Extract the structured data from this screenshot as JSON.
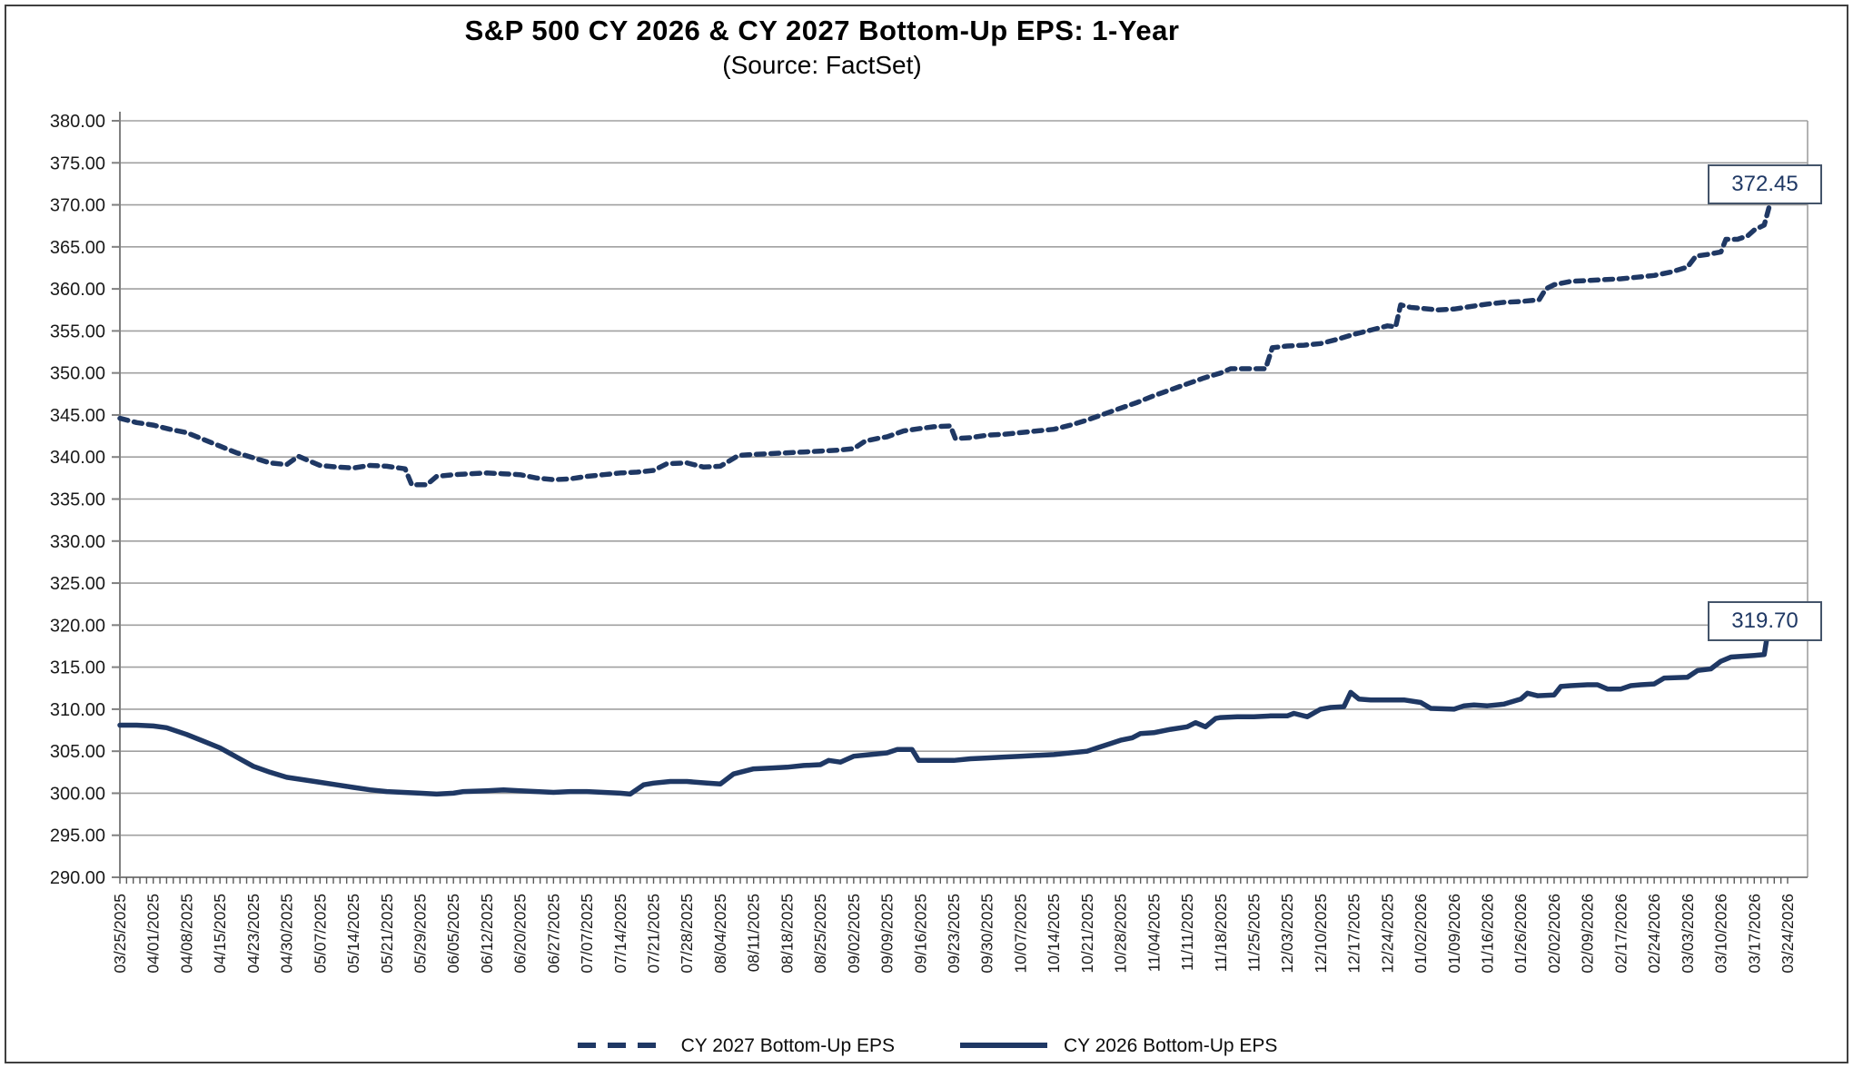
{
  "header": {
    "title": "S&P 500 CY 2026 & CY 2027 Bottom-Up EPS: 1-Year",
    "subtitle": "(Source: FactSet)"
  },
  "legend": {
    "items": [
      {
        "label": "CY 2027 Bottom-Up EPS",
        "style": "dashed"
      },
      {
        "label": "CY 2026 Bottom-Up EPS",
        "style": "solid"
      }
    ]
  },
  "colors": {
    "series": "#1F3864",
    "gridline": "#A0A0A0",
    "axis": "#808080",
    "tick": "#595959",
    "label_text": "#1a1a1a",
    "endbox_border": "#44546A",
    "endbox_text": "#1F3864"
  },
  "chart_data": {
    "type": "line",
    "title": "S&P 500 CY 2026 & CY 2027 Bottom-Up EPS: 1-Year",
    "subtitle": "(Source: FactSet)",
    "grid": "horizontal-only",
    "legend_position": "bottom-center",
    "y_min": 290,
    "y_max": 380,
    "y_step": 5,
    "y_tick_labels": [
      "380.00",
      "375.00",
      "370.00",
      "365.00",
      "360.00",
      "355.00",
      "350.00",
      "345.00",
      "340.00",
      "335.00",
      "330.00",
      "325.00",
      "320.00",
      "315.00",
      "310.00",
      "305.00",
      "300.00",
      "295.00",
      "290.00"
    ],
    "daily_tick_count": 251,
    "x_labels": [
      "03/25/2025",
      "04/01/2025",
      "04/08/2025",
      "04/15/2025",
      "04/23/2025",
      "04/30/2025",
      "05/07/2025",
      "05/14/2025",
      "05/21/2025",
      "05/29/2025",
      "06/05/2025",
      "06/12/2025",
      "06/20/2025",
      "06/27/2025",
      "07/07/2025",
      "07/14/2025",
      "07/21/2025",
      "07/28/2025",
      "08/04/2025",
      "08/11/2025",
      "08/18/2025",
      "08/25/2025",
      "09/02/2025",
      "09/09/2025",
      "09/16/2025",
      "09/23/2025",
      "09/30/2025",
      "10/07/2025",
      "10/14/2025",
      "10/21/2025",
      "10/28/2025",
      "11/04/2025",
      "11/11/2025",
      "11/18/2025",
      "11/25/2025",
      "12/03/2025",
      "12/10/2025",
      "12/17/2025",
      "12/24/2025",
      "01/02/2026",
      "01/09/2026",
      "01/16/2026",
      "01/26/2026",
      "02/02/2026",
      "02/09/2026",
      "02/17/2026",
      "02/24/2026",
      "03/03/2026",
      "03/10/2026",
      "03/17/2026",
      "03/24/2026"
    ],
    "series": [
      {
        "name": "CY 2027 Bottom-Up EPS",
        "style": "dashed",
        "end_label": "372.45",
        "end_value": 372.45,
        "points": [
          [
            0,
            344.6
          ],
          [
            0.5,
            344.1
          ],
          [
            1,
            343.8
          ],
          [
            1.5,
            343.3
          ],
          [
            2,
            342.9
          ],
          [
            2.5,
            342.1
          ],
          [
            3,
            341.3
          ],
          [
            3.5,
            340.5
          ],
          [
            4,
            339.9
          ],
          [
            4.5,
            339.3
          ],
          [
            5,
            339.1
          ],
          [
            5.35,
            340.1
          ],
          [
            5.7,
            339.5
          ],
          [
            6,
            339.0
          ],
          [
            6.5,
            338.8
          ],
          [
            7,
            338.7
          ],
          [
            7.5,
            339.0
          ],
          [
            8,
            338.9
          ],
          [
            8.55,
            338.6
          ],
          [
            8.75,
            336.7
          ],
          [
            9.2,
            336.7
          ],
          [
            9.5,
            337.7
          ],
          [
            10,
            337.9
          ],
          [
            10.5,
            338.0
          ],
          [
            11,
            338.1
          ],
          [
            11.5,
            338.0
          ],
          [
            12,
            337.9
          ],
          [
            12.5,
            337.5
          ],
          [
            13,
            337.3
          ],
          [
            13.5,
            337.4
          ],
          [
            14,
            337.7
          ],
          [
            14.5,
            337.9
          ],
          [
            15,
            338.1
          ],
          [
            15.5,
            338.2
          ],
          [
            16,
            338.4
          ],
          [
            16.4,
            339.2
          ],
          [
            17,
            339.3
          ],
          [
            17.5,
            338.8
          ],
          [
            18,
            338.9
          ],
          [
            18.55,
            340.2
          ],
          [
            19,
            340.3
          ],
          [
            19.5,
            340.4
          ],
          [
            20,
            340.5
          ],
          [
            20.5,
            340.6
          ],
          [
            21,
            340.7
          ],
          [
            21.5,
            340.8
          ],
          [
            22,
            341.0
          ],
          [
            22.35,
            341.9
          ],
          [
            22.7,
            342.2
          ],
          [
            23,
            342.4
          ],
          [
            23.5,
            343.1
          ],
          [
            24,
            343.4
          ],
          [
            24.4,
            343.6
          ],
          [
            24.9,
            343.7
          ],
          [
            25.05,
            342.2
          ],
          [
            25.5,
            342.3
          ],
          [
            26,
            342.6
          ],
          [
            26.5,
            342.7
          ],
          [
            27,
            342.9
          ],
          [
            27.5,
            343.1
          ],
          [
            28,
            343.3
          ],
          [
            28.5,
            343.8
          ],
          [
            29,
            344.4
          ],
          [
            29.5,
            345.1
          ],
          [
            30,
            345.8
          ],
          [
            30.5,
            346.5
          ],
          [
            31,
            347.3
          ],
          [
            31.5,
            348.0
          ],
          [
            32,
            348.7
          ],
          [
            32.5,
            349.4
          ],
          [
            33,
            350.0
          ],
          [
            33.3,
            350.5
          ],
          [
            34.35,
            350.5
          ],
          [
            34.55,
            353.0
          ],
          [
            35,
            353.2
          ],
          [
            35.5,
            353.3
          ],
          [
            36,
            353.5
          ],
          [
            36.5,
            354.0
          ],
          [
            37,
            354.6
          ],
          [
            37.5,
            355.1
          ],
          [
            38,
            355.6
          ],
          [
            38.25,
            355.5
          ],
          [
            38.4,
            358.1
          ],
          [
            38.7,
            357.8
          ],
          [
            39,
            357.7
          ],
          [
            39.5,
            357.5
          ],
          [
            40,
            357.6
          ],
          [
            40.5,
            357.9
          ],
          [
            41,
            358.2
          ],
          [
            41.5,
            358.4
          ],
          [
            42,
            358.5
          ],
          [
            42.55,
            358.7
          ],
          [
            42.75,
            360.0
          ],
          [
            43,
            360.5
          ],
          [
            43.5,
            360.9
          ],
          [
            44,
            361.0
          ],
          [
            44.5,
            361.1
          ],
          [
            45,
            361.2
          ],
          [
            45.5,
            361.4
          ],
          [
            46,
            361.6
          ],
          [
            46.5,
            362.0
          ],
          [
            47,
            362.6
          ],
          [
            47.25,
            363.9
          ],
          [
            47.6,
            364.1
          ],
          [
            48,
            364.4
          ],
          [
            48.15,
            365.9
          ],
          [
            48.5,
            365.9
          ],
          [
            48.8,
            366.3
          ],
          [
            49,
            367.0
          ],
          [
            49.3,
            367.6
          ],
          [
            49.45,
            369.8
          ],
          [
            49.6,
            372.6
          ],
          [
            49.75,
            372.0
          ],
          [
            50,
            372.45
          ]
        ]
      },
      {
        "name": "CY 2026 Bottom-Up EPS",
        "style": "solid",
        "end_label": "319.70",
        "end_value": 319.7,
        "points": [
          [
            0,
            308.1
          ],
          [
            0.5,
            308.1
          ],
          [
            1,
            308.0
          ],
          [
            1.4,
            307.8
          ],
          [
            2,
            307.0
          ],
          [
            2.5,
            306.2
          ],
          [
            3,
            305.4
          ],
          [
            3.5,
            304.3
          ],
          [
            4,
            303.2
          ],
          [
            4.5,
            302.5
          ],
          [
            5,
            301.9
          ],
          [
            5.5,
            301.6
          ],
          [
            6,
            301.3
          ],
          [
            6.5,
            301.0
          ],
          [
            7,
            300.7
          ],
          [
            7.5,
            300.4
          ],
          [
            8,
            300.2
          ],
          [
            8.5,
            300.1
          ],
          [
            9,
            300.0
          ],
          [
            9.5,
            299.9
          ],
          [
            10,
            300.0
          ],
          [
            10.3,
            300.2
          ],
          [
            11,
            300.3
          ],
          [
            11.5,
            300.4
          ],
          [
            12,
            300.3
          ],
          [
            12.5,
            300.2
          ],
          [
            13,
            300.1
          ],
          [
            13.5,
            300.2
          ],
          [
            14,
            300.2
          ],
          [
            14.5,
            300.1
          ],
          [
            15,
            300.0
          ],
          [
            15.3,
            299.9
          ],
          [
            15.7,
            301.0
          ],
          [
            16,
            301.2
          ],
          [
            16.5,
            301.4
          ],
          [
            17,
            301.4
          ],
          [
            17.6,
            301.2
          ],
          [
            18,
            301.1
          ],
          [
            18.4,
            302.3
          ],
          [
            19,
            302.9
          ],
          [
            19.5,
            303.0
          ],
          [
            20,
            303.1
          ],
          [
            20.5,
            303.3
          ],
          [
            21,
            303.4
          ],
          [
            21.25,
            303.9
          ],
          [
            21.6,
            303.7
          ],
          [
            22,
            304.4
          ],
          [
            22.5,
            304.6
          ],
          [
            23,
            304.8
          ],
          [
            23.3,
            305.2
          ],
          [
            23.75,
            305.2
          ],
          [
            23.95,
            303.9
          ],
          [
            24.5,
            303.9
          ],
          [
            25,
            303.9
          ],
          [
            25.5,
            304.1
          ],
          [
            26,
            304.2
          ],
          [
            26.5,
            304.3
          ],
          [
            27,
            304.4
          ],
          [
            27.5,
            304.5
          ],
          [
            28,
            304.6
          ],
          [
            28.5,
            304.8
          ],
          [
            29,
            305.0
          ],
          [
            29.3,
            305.4
          ],
          [
            29.7,
            305.9
          ],
          [
            30,
            306.3
          ],
          [
            30.35,
            306.6
          ],
          [
            30.6,
            307.1
          ],
          [
            31,
            307.2
          ],
          [
            31.5,
            307.6
          ],
          [
            32,
            307.9
          ],
          [
            32.25,
            308.4
          ],
          [
            32.55,
            307.9
          ],
          [
            32.85,
            308.9
          ],
          [
            33,
            309.0
          ],
          [
            33.5,
            309.1
          ],
          [
            34,
            309.1
          ],
          [
            34.5,
            309.2
          ],
          [
            35,
            309.2
          ],
          [
            35.2,
            309.5
          ],
          [
            35.6,
            309.1
          ],
          [
            36,
            310.0
          ],
          [
            36.3,
            310.2
          ],
          [
            36.7,
            310.3
          ],
          [
            36.9,
            312.0
          ],
          [
            37.15,
            311.2
          ],
          [
            37.5,
            311.1
          ],
          [
            38,
            311.1
          ],
          [
            38.5,
            311.1
          ],
          [
            39,
            310.8
          ],
          [
            39.3,
            310.1
          ],
          [
            40,
            310.0
          ],
          [
            40.3,
            310.4
          ],
          [
            40.6,
            310.5
          ],
          [
            41,
            310.4
          ],
          [
            41.5,
            310.6
          ],
          [
            42,
            311.2
          ],
          [
            42.2,
            311.9
          ],
          [
            42.5,
            311.6
          ],
          [
            43,
            311.7
          ],
          [
            43.2,
            312.7
          ],
          [
            43.5,
            312.8
          ],
          [
            44,
            312.9
          ],
          [
            44.3,
            312.9
          ],
          [
            44.6,
            312.4
          ],
          [
            45,
            312.4
          ],
          [
            45.3,
            312.8
          ],
          [
            45.6,
            312.9
          ],
          [
            46,
            313.0
          ],
          [
            46.3,
            313.7
          ],
          [
            47,
            313.8
          ],
          [
            47.3,
            314.6
          ],
          [
            47.7,
            314.8
          ],
          [
            48,
            315.7
          ],
          [
            48.3,
            316.2
          ],
          [
            49,
            316.4
          ],
          [
            49.3,
            316.5
          ],
          [
            49.45,
            320.2
          ],
          [
            49.6,
            320.0
          ],
          [
            49.7,
            319.2
          ],
          [
            49.85,
            319.6
          ],
          [
            50,
            319.7
          ]
        ]
      }
    ]
  }
}
